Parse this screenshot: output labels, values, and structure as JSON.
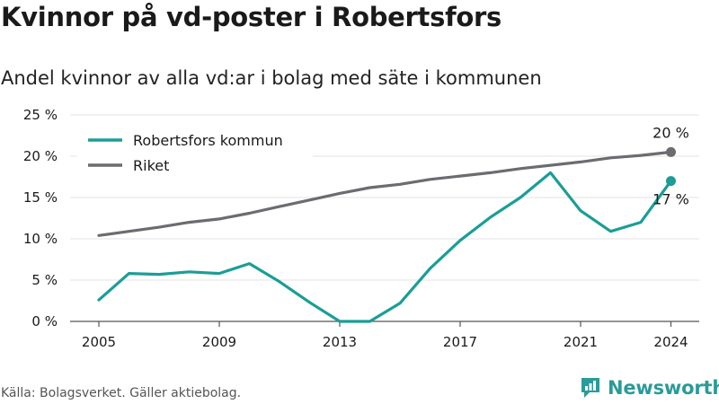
{
  "title": "Kvinnor på vd-poster i Robertsfors",
  "subtitle": "Andel kvinnor av alla vd:ar i bolag med säte i kommunen",
  "source": "Källa: Bolagsverket. Gäller aktiebolag.",
  "brand": {
    "name": "Newsworthy",
    "icon": "newsworthy-logo-icon",
    "color": "#2b9a9a"
  },
  "chart_data": {
    "type": "line",
    "title": "Kvinnor på vd-poster i Robertsfors",
    "subtitle": "Andel kvinnor av alla vd:ar i bolag med säte i kommunen",
    "x": [
      2005,
      2006,
      2007,
      2008,
      2009,
      2010,
      2011,
      2012,
      2013,
      2014,
      2015,
      2016,
      2017,
      2018,
      2019,
      2020,
      2021,
      2022,
      2023,
      2024
    ],
    "x_ticks": [
      "2005",
      "2009",
      "2013",
      "2017",
      "2021",
      "2024"
    ],
    "y_ticks": [
      "0 %",
      "5 %",
      "10 %",
      "15 %",
      "20 %",
      "25 %"
    ],
    "ylim": [
      0,
      25
    ],
    "grid": true,
    "legend": "top-left",
    "series": [
      {
        "name": "Robertsfors kommun",
        "color": "#1a9e96",
        "values": [
          2.6,
          5.8,
          5.7,
          6.0,
          5.8,
          7.0,
          4.8,
          2.3,
          0.0,
          0.0,
          2.2,
          6.4,
          9.8,
          12.6,
          15.0,
          18.0,
          13.4,
          10.9,
          12.0,
          17.0
        ],
        "end_label": "17 %"
      },
      {
        "name": "Riket",
        "color": "#6b6b70",
        "values": [
          10.4,
          10.9,
          11.4,
          12.0,
          12.4,
          13.1,
          13.9,
          14.7,
          15.5,
          16.2,
          16.6,
          17.2,
          17.6,
          18.0,
          18.5,
          18.9,
          19.3,
          19.8,
          20.1,
          20.5
        ],
        "end_label": "20 %"
      }
    ]
  }
}
